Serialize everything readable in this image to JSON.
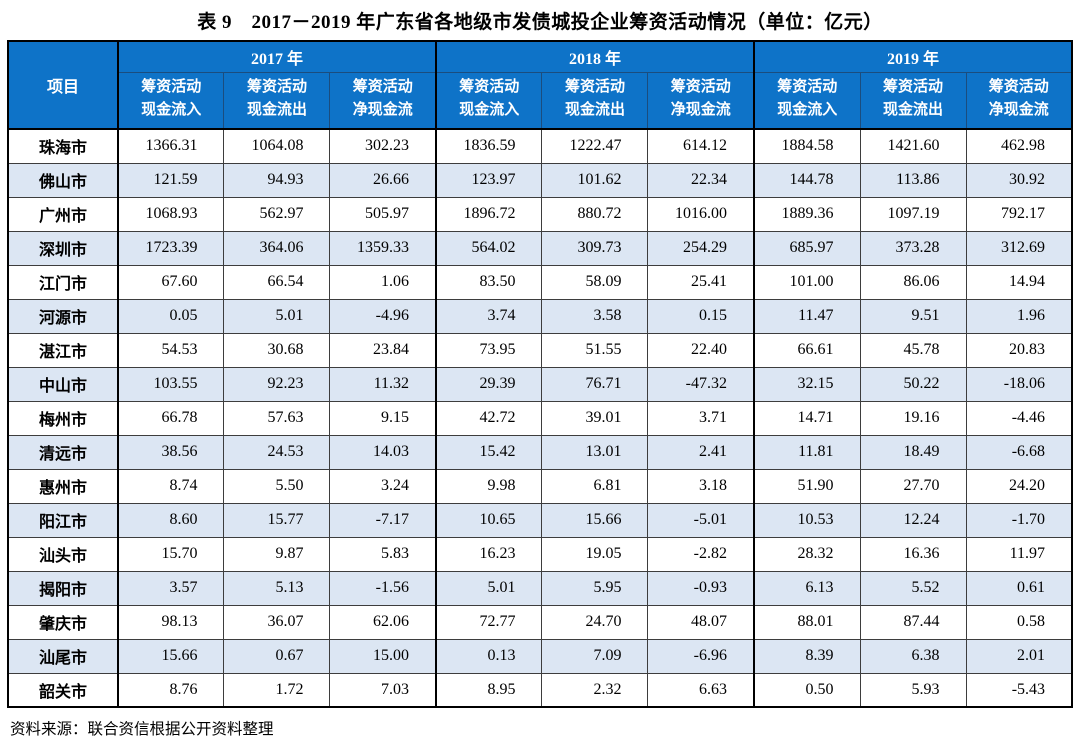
{
  "title": "表 9　2017－2019 年广东省各地级市发债城投企业筹资活动情况（单位：亿元）",
  "source_note": "资料来源：联合资信根据公开资料整理",
  "colors": {
    "header_bg": "#0e73c8",
    "header_text": "#ffffff",
    "alt_row_bg": "#dce6f3",
    "border_outer": "#000000",
    "border_inner": "#3d3d3d"
  },
  "table": {
    "corner_header": "项目",
    "year_groups": [
      "2017 年",
      "2018 年",
      "2019 年"
    ],
    "sub_headers": [
      {
        "line1": "筹资活动",
        "line2": "现金流入"
      },
      {
        "line1": "筹资活动",
        "line2": "现金流出"
      },
      {
        "line1": "筹资活动",
        "line2": "净现金流"
      }
    ],
    "rows": [
      {
        "city": "珠海市",
        "values": [
          "1366.31",
          "1064.08",
          "302.23",
          "1836.59",
          "1222.47",
          "614.12",
          "1884.58",
          "1421.60",
          "462.98"
        ]
      },
      {
        "city": "佛山市",
        "values": [
          "121.59",
          "94.93",
          "26.66",
          "123.97",
          "101.62",
          "22.34",
          "144.78",
          "113.86",
          "30.92"
        ]
      },
      {
        "city": "广州市",
        "values": [
          "1068.93",
          "562.97",
          "505.97",
          "1896.72",
          "880.72",
          "1016.00",
          "1889.36",
          "1097.19",
          "792.17"
        ]
      },
      {
        "city": "深圳市",
        "values": [
          "1723.39",
          "364.06",
          "1359.33",
          "564.02",
          "309.73",
          "254.29",
          "685.97",
          "373.28",
          "312.69"
        ]
      },
      {
        "city": "江门市",
        "values": [
          "67.60",
          "66.54",
          "1.06",
          "83.50",
          "58.09",
          "25.41",
          "101.00",
          "86.06",
          "14.94"
        ]
      },
      {
        "city": "河源市",
        "values": [
          "0.05",
          "5.01",
          "-4.96",
          "3.74",
          "3.58",
          "0.15",
          "11.47",
          "9.51",
          "1.96"
        ]
      },
      {
        "city": "湛江市",
        "values": [
          "54.53",
          "30.68",
          "23.84",
          "73.95",
          "51.55",
          "22.40",
          "66.61",
          "45.78",
          "20.83"
        ]
      },
      {
        "city": "中山市",
        "values": [
          "103.55",
          "92.23",
          "11.32",
          "29.39",
          "76.71",
          "-47.32",
          "32.15",
          "50.22",
          "-18.06"
        ]
      },
      {
        "city": "梅州市",
        "values": [
          "66.78",
          "57.63",
          "9.15",
          "42.72",
          "39.01",
          "3.71",
          "14.71",
          "19.16",
          "-4.46"
        ]
      },
      {
        "city": "清远市",
        "values": [
          "38.56",
          "24.53",
          "14.03",
          "15.42",
          "13.01",
          "2.41",
          "11.81",
          "18.49",
          "-6.68"
        ]
      },
      {
        "city": "惠州市",
        "values": [
          "8.74",
          "5.50",
          "3.24",
          "9.98",
          "6.81",
          "3.18",
          "51.90",
          "27.70",
          "24.20"
        ]
      },
      {
        "city": "阳江市",
        "values": [
          "8.60",
          "15.77",
          "-7.17",
          "10.65",
          "15.66",
          "-5.01",
          "10.53",
          "12.24",
          "-1.70"
        ]
      },
      {
        "city": "汕头市",
        "values": [
          "15.70",
          "9.87",
          "5.83",
          "16.23",
          "19.05",
          "-2.82",
          "28.32",
          "16.36",
          "11.97"
        ]
      },
      {
        "city": "揭阳市",
        "values": [
          "3.57",
          "5.13",
          "-1.56",
          "5.01",
          "5.95",
          "-0.93",
          "6.13",
          "5.52",
          "0.61"
        ]
      },
      {
        "city": "肇庆市",
        "values": [
          "98.13",
          "36.07",
          "62.06",
          "72.77",
          "24.70",
          "48.07",
          "88.01",
          "87.44",
          "0.58"
        ]
      },
      {
        "city": "汕尾市",
        "values": [
          "15.66",
          "0.67",
          "15.00",
          "0.13",
          "7.09",
          "-6.96",
          "8.39",
          "6.38",
          "2.01"
        ]
      },
      {
        "city": "韶关市",
        "values": [
          "8.76",
          "1.72",
          "7.03",
          "8.95",
          "2.32",
          "6.63",
          "0.50",
          "5.93",
          "-5.43"
        ]
      }
    ]
  }
}
